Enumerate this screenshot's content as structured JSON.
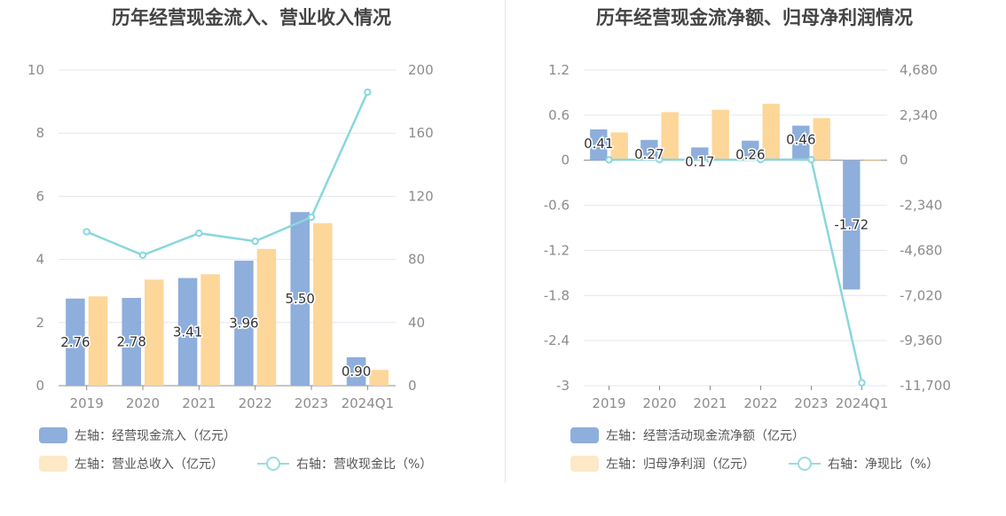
{
  "colors": {
    "bar1": "#8eaedc",
    "bar2": "#fdd69a",
    "line": "#8ad7dd",
    "legend_bar2": "#fde8c8",
    "legend_line": "#9adbe0"
  },
  "chart_data": [
    {
      "type": "bar",
      "title": "历年经营现金流入、营业收入情况",
      "categories": [
        "2019",
        "2020",
        "2021",
        "2022",
        "2023",
        "2024Q1"
      ],
      "left_axis": {
        "ylim": [
          0,
          10
        ],
        "ticks": [
          "0",
          "2",
          "4",
          "6",
          "8",
          "10"
        ]
      },
      "right_axis": {
        "ylim": [
          0,
          200
        ],
        "ticks": [
          "0",
          "40",
          "80",
          "120",
          "160",
          "200"
        ]
      },
      "series": [
        {
          "name": "左轴：经营现金流入（亿元）",
          "type": "bar",
          "axis": "left",
          "values": [
            2.76,
            2.78,
            3.41,
            3.96,
            5.5,
            0.9
          ],
          "labels": [
            "2.76",
            "2.78",
            "3.41",
            "3.96",
            "5.50",
            "0.90"
          ]
        },
        {
          "name": "左轴：营业总收入（亿元）",
          "type": "bar",
          "axis": "left",
          "values": [
            2.83,
            3.36,
            3.53,
            4.33,
            5.15,
            0.5
          ]
        },
        {
          "name": "右轴：营收现金比（%）",
          "type": "line",
          "axis": "right",
          "values": [
            97.5,
            82.7,
            96.6,
            91.5,
            106.8,
            186.0
          ]
        }
      ]
    },
    {
      "type": "bar",
      "title": "历年经营现金流净额、归母净利润情况",
      "categories": [
        "2019",
        "2020",
        "2021",
        "2022",
        "2023",
        "2024Q1"
      ],
      "left_axis": {
        "ylim": [
          -3,
          1.2
        ],
        "ticks": [
          "1.2",
          "0.6",
          "0",
          "-0.6",
          "-1.2",
          "-1.8",
          "-2.4",
          "-3"
        ]
      },
      "right_axis": {
        "ylim": [
          -11700,
          4680
        ],
        "ticks": [
          "4,680",
          "2,340",
          "0",
          "-2,340",
          "-4,680",
          "-7,020",
          "-9,360",
          "-11,700"
        ]
      },
      "series": [
        {
          "name": "左轴：经营活动现金流净额（亿元）",
          "type": "bar",
          "axis": "left",
          "values": [
            0.41,
            0.27,
            0.17,
            0.26,
            0.46,
            -1.72
          ],
          "labels": [
            "0.41",
            "0.27",
            "0.17",
            "0.26",
            "0.46",
            "-1.72"
          ]
        },
        {
          "name": "左轴：归母净利润（亿元）",
          "type": "bar",
          "axis": "left",
          "values": [
            0.37,
            0.64,
            0.67,
            0.75,
            0.56,
            -0.01
          ]
        },
        {
          "name": "右轴：净现比（%）",
          "type": "line",
          "axis": "right",
          "values": [
            20,
            30,
            20,
            30,
            30,
            -11550
          ]
        }
      ]
    }
  ]
}
